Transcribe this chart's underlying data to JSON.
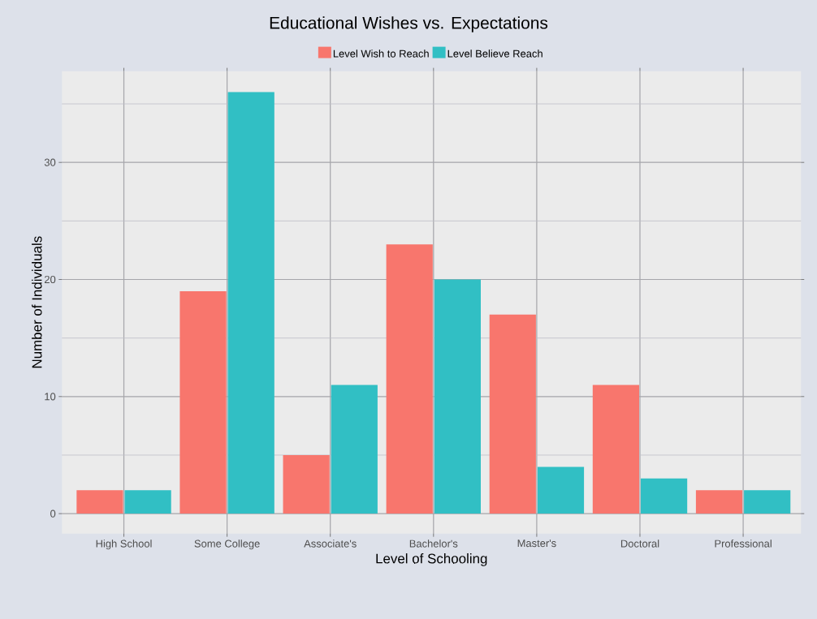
{
  "chart_data": {
    "type": "bar",
    "title": "Educational Wishes vs. Expectations",
    "xlabel": "Level of Schooling",
    "ylabel": "Number of Individuals",
    "categories": [
      "High School",
      "Some College",
      "Associate's",
      "Bachelor's",
      "Master's",
      "Doctoral",
      "Professional"
    ],
    "series": [
      {
        "name": "Level Wish to Reach",
        "color": "#f8766d",
        "values": [
          2,
          19,
          5,
          23,
          17,
          11,
          2
        ]
      },
      {
        "name": "Level Believe Reach",
        "color": "#31bfc4",
        "values": [
          2,
          36,
          11,
          20,
          4,
          3,
          2
        ]
      }
    ],
    "ylim": [
      -1.7,
      37.8
    ],
    "yticks": [
      0,
      10,
      20,
      30
    ],
    "grid": true,
    "legend": "top"
  }
}
